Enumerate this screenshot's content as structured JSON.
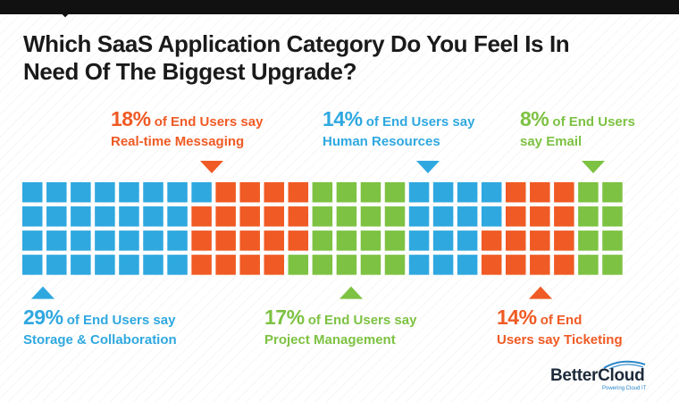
{
  "title_lines": [
    "Which SaaS Application Category Do You Feel Is In",
    "Need Of The Biggest Upgrade?"
  ],
  "brand": {
    "name": "BetterCloud",
    "tagline": "Powering Cloud IT"
  },
  "colors": {
    "blue": "#2fa8e0",
    "orange": "#f05a24",
    "green": "#7dc242",
    "text": "#1a1a1a"
  },
  "chart_data": {
    "type": "waffle",
    "title": "Which SaaS Application Category Do You Feel Is In Need Of The Biggest Upgrade?",
    "unit": "% of End Users",
    "grid": {
      "rows": 4,
      "columns": 25
    },
    "series": [
      {
        "name": "Storage & Collaboration",
        "value": 29,
        "color": "blue",
        "label_prefix": "of End Users say",
        "label_position": "bottom"
      },
      {
        "name": "Real-time Messaging",
        "value": 18,
        "color": "orange",
        "label_prefix": "of End Users say",
        "label_position": "top"
      },
      {
        "name": "Project Management",
        "value": 17,
        "color": "green",
        "label_prefix": "of End Users say",
        "label_position": "bottom"
      },
      {
        "name": "Human Resources",
        "value": 14,
        "color": "blue",
        "label_prefix": "of End Users say",
        "label_position": "top"
      },
      {
        "name": "Ticketing",
        "value": 14,
        "color": "orange",
        "label_prefix": "of End Users say",
        "label_position": "bottom"
      },
      {
        "name": "Email",
        "value": 8,
        "color": "green",
        "label_prefix": "of End Users say",
        "label_position": "top"
      }
    ]
  },
  "callouts": {
    "messaging": {
      "pct": "18%",
      "line1": " of End Users say",
      "line2": "Real-time Messaging"
    },
    "hr": {
      "pct": "14%",
      "line1": " of End Users say",
      "line2": "Human Resources"
    },
    "email": {
      "pct": "8%",
      "line1": " of End Users",
      "line2": "say Email"
    },
    "storage": {
      "pct": "29%",
      "line1": " of End Users say",
      "line2": "Storage & Collaboration"
    },
    "project": {
      "pct": "17%",
      "line1": " of End Users say",
      "line2": "Project Management"
    },
    "ticketing": {
      "pct": "14%",
      "line1": " of End",
      "line2": "Users say Ticketing"
    }
  }
}
